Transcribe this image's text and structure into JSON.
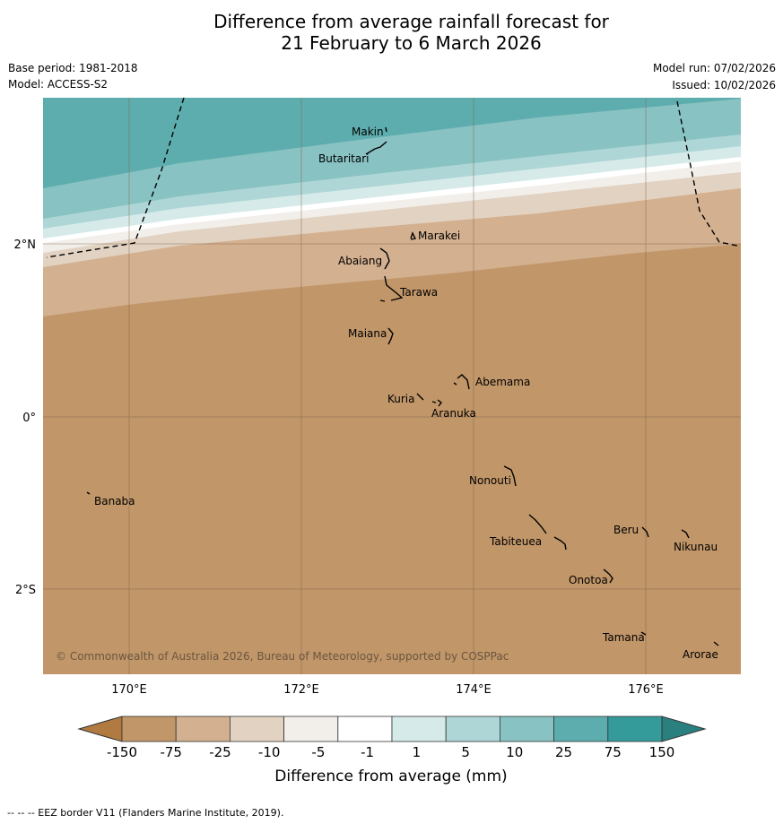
{
  "title": {
    "line1": "Difference from average rainfall forecast for",
    "line2": "21 February to 6 March 2026"
  },
  "meta": {
    "base_period": "Base period: 1981-2018",
    "model": "Model: ACCESS-S2",
    "model_run": "Model run: 07/02/2026",
    "issued": "Issued: 10/02/2026"
  },
  "map": {
    "lon_labels": [
      "170°E",
      "172°E",
      "174°E",
      "176°E"
    ],
    "lat_labels": [
      "2°N",
      "0°",
      "2°S"
    ],
    "copyright": "© Commonwealth of Australia 2026, Bureau of Meteorology, supported by COSPPac",
    "places": [
      "Makin",
      "Butaritari",
      "Marakei",
      "Abaiang",
      "Tarawa",
      "Maiana",
      "Abemama",
      "Kuria",
      "Aranuka",
      "Nonouti",
      "Banaba",
      "Beru",
      "Nikunau",
      "Tabiteuea",
      "Onotoa",
      "Tamana",
      "Arorae"
    ]
  },
  "legend": {
    "ticks": [
      "-150",
      "-75",
      "-25",
      "-10",
      "-5",
      "-1",
      "1",
      "5",
      "10",
      "25",
      "75",
      "150"
    ],
    "colors": [
      "#b07a40",
      "#c19669",
      "#d3b08f",
      "#e2d2c2",
      "#f2efeb",
      "#ffffff",
      "#d6eaea",
      "#afd6d6",
      "#89c2c2",
      "#5eadae",
      "#359a9a",
      "#2a7f7f"
    ],
    "label": "Difference from average (mm)"
  },
  "footer": "--  --  -- EEZ border V11 (Flanders Marine Institute, 2019)."
}
